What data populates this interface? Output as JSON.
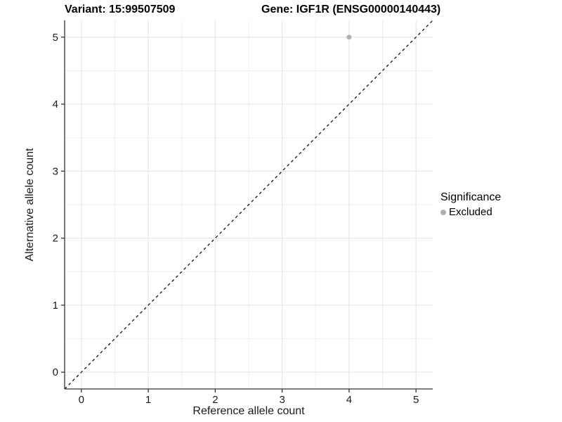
{
  "page": {
    "background": "#ffffff"
  },
  "chart_data": {
    "type": "scatter",
    "title_left": "Variant: 15:99507509",
    "title_right": "Gene: IGF1R (ENSG00000140443)",
    "xlabel": "Reference allele count",
    "ylabel": "Alternative allele count",
    "xlim": [
      -0.25,
      5.25
    ],
    "ylim": [
      -0.25,
      5.25
    ],
    "xticks": [
      0,
      1,
      2,
      3,
      4,
      5
    ],
    "yticks": [
      0,
      1,
      2,
      3,
      4,
      5
    ],
    "xticks_minor": [
      0.5,
      1.5,
      2.5,
      3.5,
      4.5
    ],
    "yticks_minor": [
      0.5,
      1.5,
      2.5,
      3.5,
      4.5
    ],
    "grid": "major+minor",
    "points": [
      {
        "x": 4,
        "y": 5,
        "series": "Excluded"
      }
    ],
    "point_radius_px": 3.5,
    "identity_line": {
      "type": "y=x",
      "style": "dashed",
      "color": "#000000"
    },
    "legend": {
      "position": "right",
      "title": "Significance",
      "items": [
        {
          "label": "Excluded",
          "color": "#b0b0b0"
        }
      ]
    },
    "colors": {
      "background": "#ffffff",
      "grid_major": "#e3e3e3",
      "grid_minor": "#f0f0f0",
      "axis_line": "#333333",
      "tick_mark": "#333333",
      "tick_label": "#1a1a1a",
      "title_text": "#000000",
      "point": "#b0b0b0"
    }
  }
}
